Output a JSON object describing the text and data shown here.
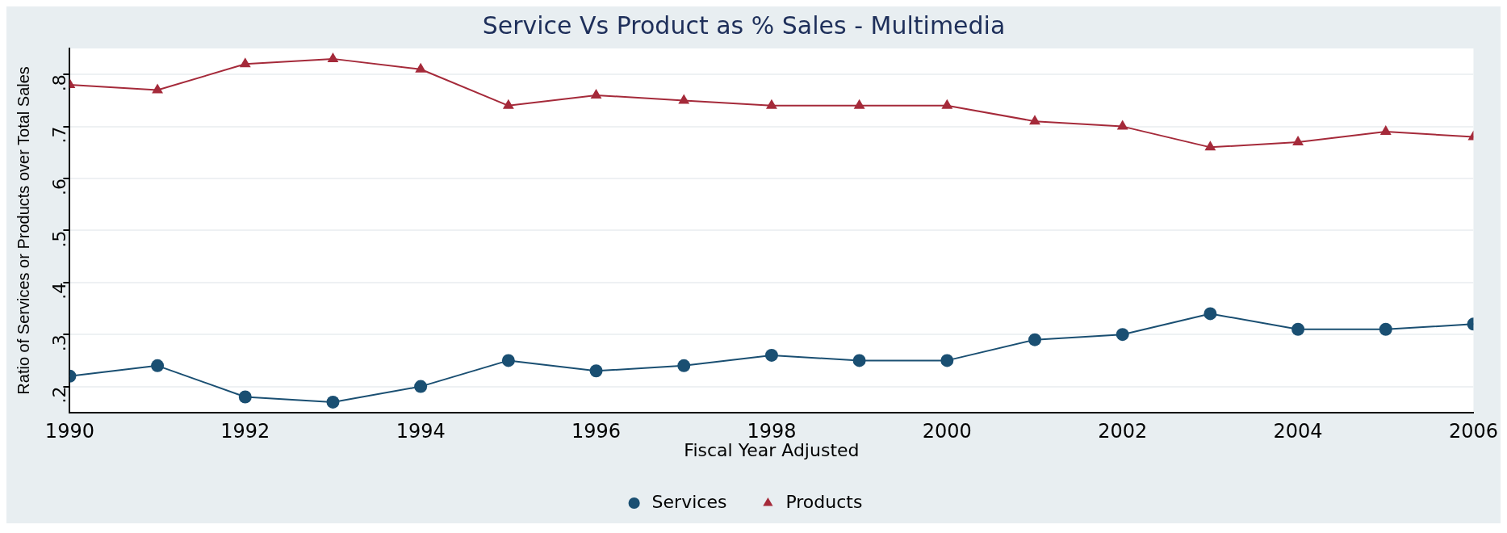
{
  "chart_data": {
    "type": "line",
    "title": "Service Vs Product as % Sales - Multimedia",
    "xlabel": "Fiscal Year Adjusted",
    "ylabel": "Ratio of Services or Products over Total Sales",
    "x": [
      1990,
      1991,
      1992,
      1993,
      1994,
      1995,
      1996,
      1997,
      1998,
      1999,
      2000,
      2001,
      2002,
      2003,
      2004,
      2005,
      2006
    ],
    "series": [
      {
        "name": "Services",
        "color": "#1a4f72",
        "marker": "circle",
        "values": [
          0.22,
          0.24,
          0.18,
          0.17,
          0.2,
          0.25,
          0.23,
          0.24,
          0.26,
          0.25,
          0.25,
          0.29,
          0.3,
          0.34,
          0.31,
          0.31,
          0.32
        ]
      },
      {
        "name": "Products",
        "color": "#a52a3a",
        "marker": "triangle",
        "values": [
          0.78,
          0.77,
          0.82,
          0.83,
          0.81,
          0.74,
          0.76,
          0.75,
          0.74,
          0.74,
          0.74,
          0.71,
          0.7,
          0.66,
          0.67,
          0.69,
          0.68
        ]
      }
    ],
    "xlim": [
      1990,
      2006
    ],
    "xticks": [
      1990,
      1992,
      1994,
      1996,
      1998,
      2000,
      2002,
      2004,
      2006
    ],
    "ylim": [
      0.15,
      0.85
    ],
    "yticks": [
      {
        "value": 0.2,
        "label": ".2"
      },
      {
        "value": 0.3,
        "label": ".3"
      },
      {
        "value": 0.4,
        "label": ".4"
      },
      {
        "value": 0.5,
        "label": ".5"
      },
      {
        "value": 0.6,
        "label": ".6"
      },
      {
        "value": 0.7,
        "label": ".7"
      },
      {
        "value": 0.8,
        "label": ".8"
      }
    ],
    "grid": "y",
    "legend": "bottom",
    "line_style": "solid"
  }
}
